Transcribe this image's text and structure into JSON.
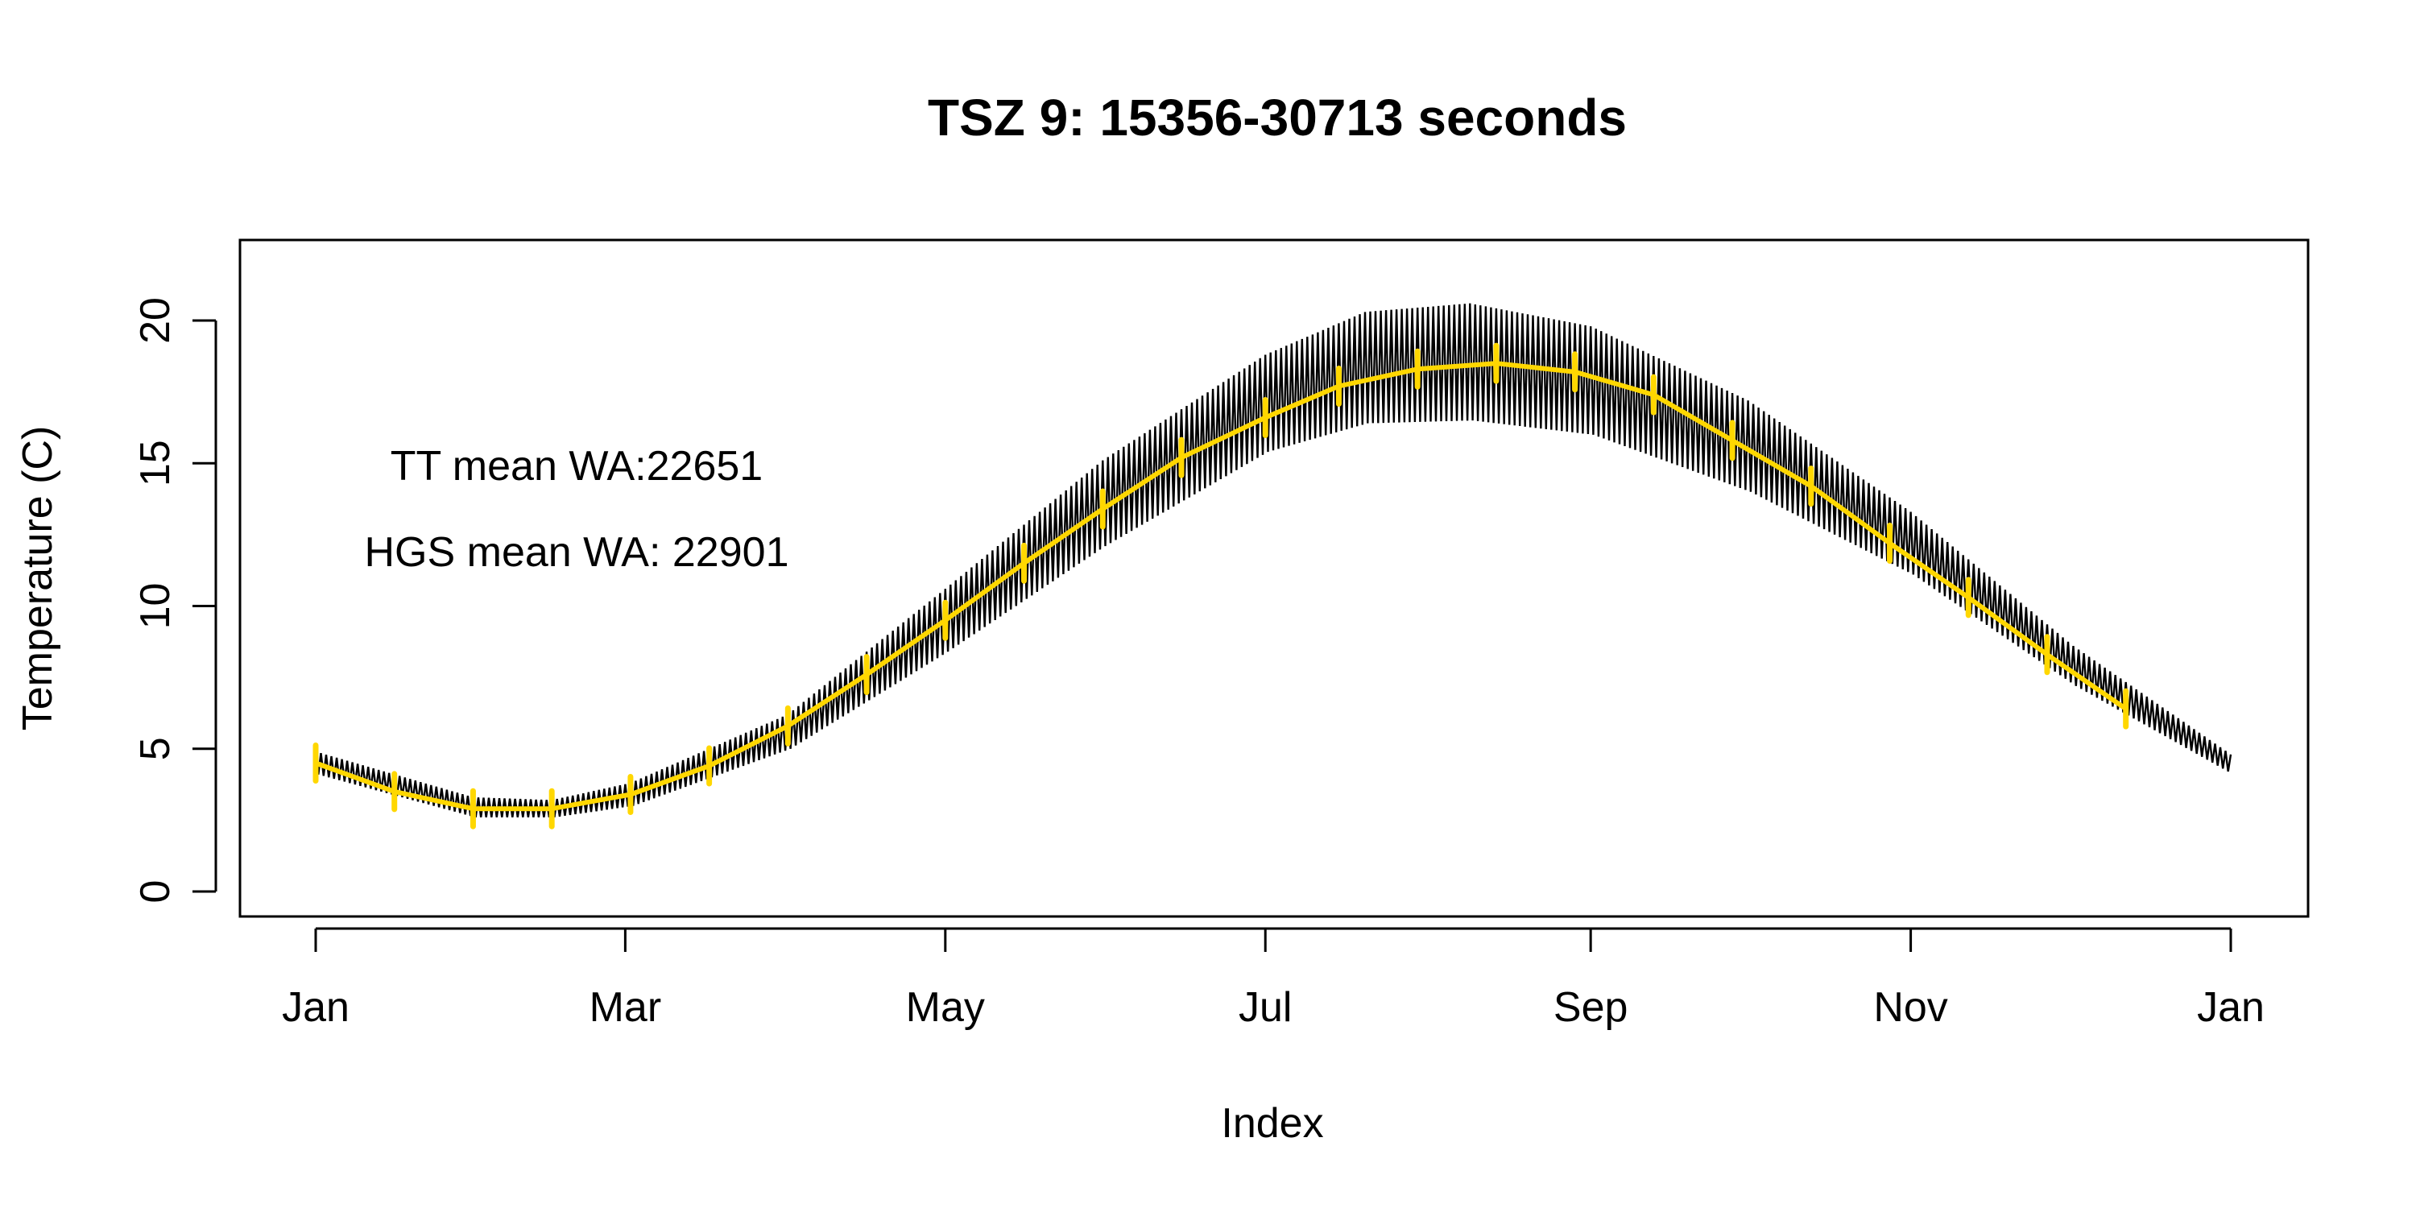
{
  "chart_data": {
    "type": "line",
    "title": "TSZ 9: 15356-30713 seconds",
    "xlabel": "Index",
    "ylabel": "Temperature (C)",
    "xlim": [
      0,
      365
    ],
    "ylim": [
      0,
      20
    ],
    "x_ticks": [
      {
        "label": "Jan",
        "day": 0
      },
      {
        "label": "Mar",
        "day": 59
      },
      {
        "label": "May",
        "day": 120
      },
      {
        "label": "Jul",
        "day": 181
      },
      {
        "label": "Sep",
        "day": 243
      },
      {
        "label": "Nov",
        "day": 304
      },
      {
        "label": "Jan",
        "day": 365
      }
    ],
    "y_ticks": [
      0,
      5,
      10,
      15,
      20
    ],
    "annotations": [
      "TT mean WA:22651",
      "HGS mean WA: 22901"
    ],
    "series": [
      {
        "color": "#000000",
        "style": "daily oscillation band",
        "x": [
          0,
          30,
          45,
          60,
          90,
          120,
          150,
          181,
          200,
          220,
          243,
          273,
          304,
          335,
          365
        ],
        "upper": [
          4.9,
          3.3,
          3.2,
          3.8,
          6.2,
          10.6,
          15.1,
          18.8,
          20.3,
          20.6,
          19.8,
          17.2,
          13.3,
          8.6,
          4.8
        ],
        "lower": [
          4.1,
          2.6,
          2.6,
          3.0,
          5.0,
          8.4,
          12.1,
          15.4,
          16.4,
          16.5,
          16.0,
          14.0,
          11.1,
          7.2,
          4.1
        ]
      },
      {
        "color": "#FFD700",
        "style": "mean line with markers",
        "x": [
          0,
          15,
          30,
          45,
          60,
          75,
          90,
          105,
          120,
          135,
          150,
          165,
          181,
          195,
          210,
          225,
          240,
          255,
          270,
          285,
          300,
          315,
          330,
          345
        ],
        "values": [
          4.5,
          3.5,
          2.9,
          2.9,
          3.4,
          4.4,
          5.8,
          7.6,
          9.5,
          11.5,
          13.4,
          15.2,
          16.6,
          17.7,
          18.3,
          18.5,
          18.2,
          17.4,
          15.8,
          14.2,
          12.2,
          10.3,
          8.3,
          6.4
        ]
      }
    ],
    "grid": false,
    "legend": "none"
  }
}
